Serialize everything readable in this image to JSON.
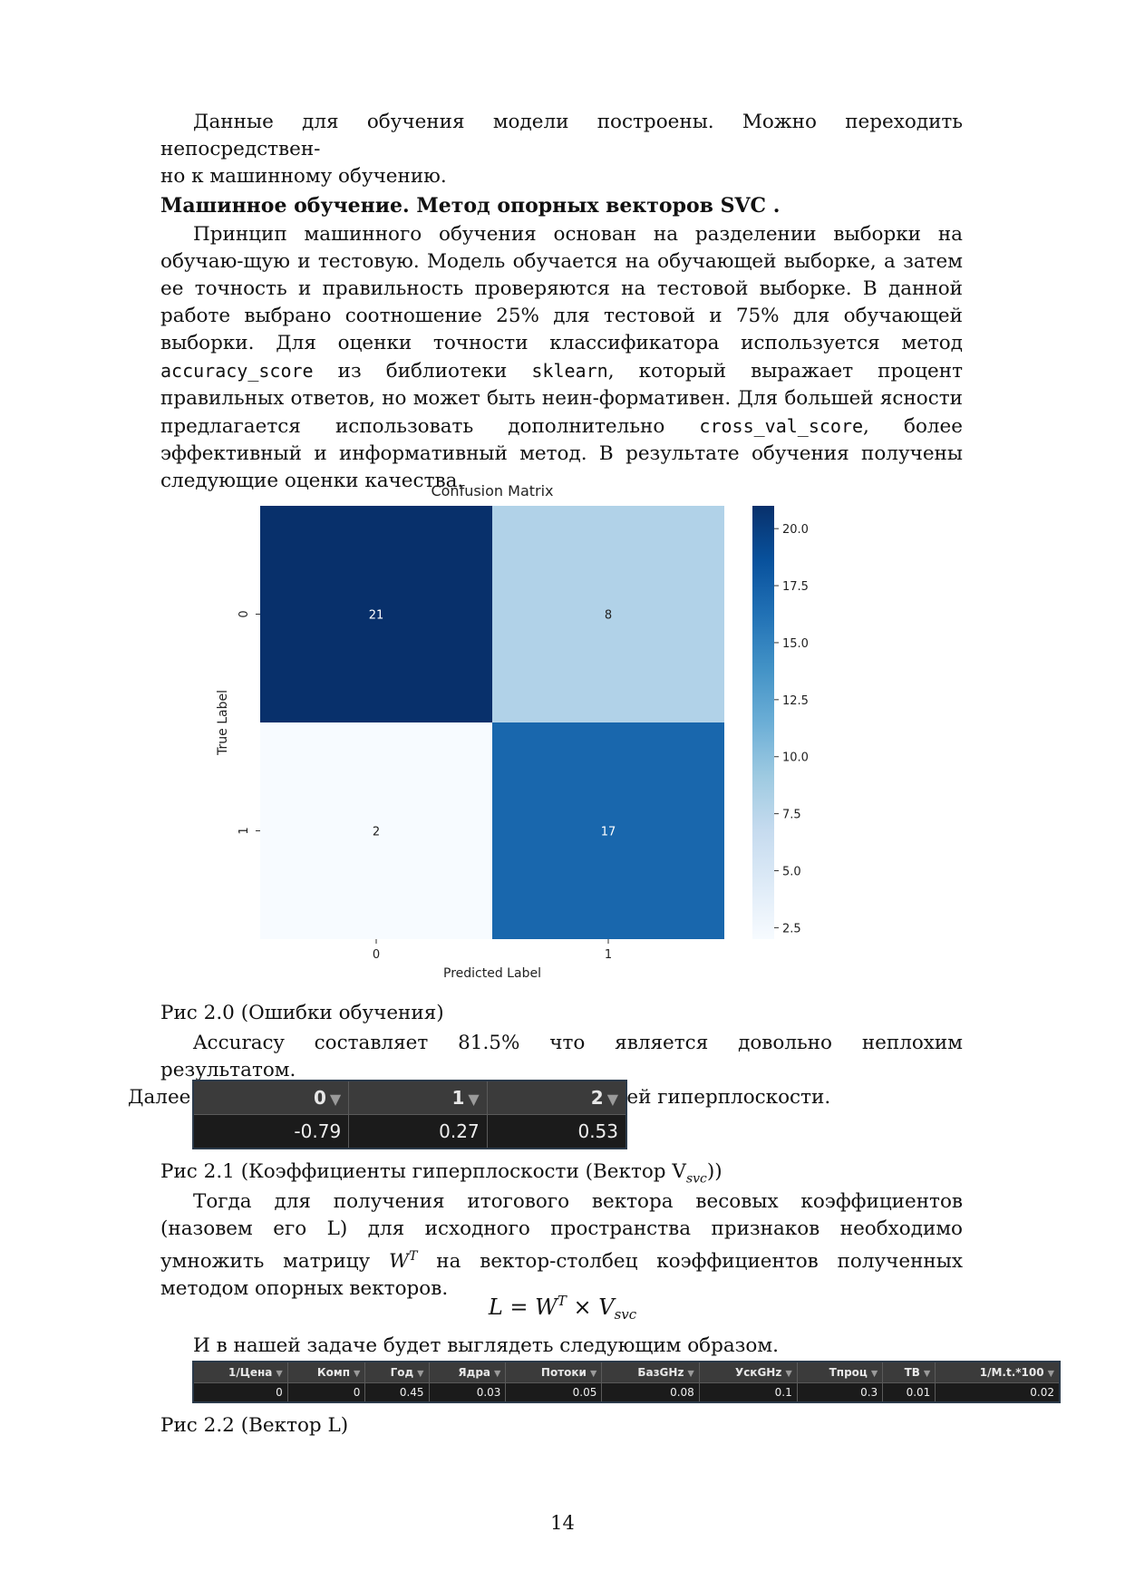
{
  "p1": {
    "line1": "Данные для обучения модели построены. Можно переходить непосредствен-",
    "line2": "но к машинному обучению."
  },
  "heading": "Машинное обучение. Метод опорных векторов SVC  .",
  "p2": {
    "t1": "Принцип машинного обучения основан на разделении выборки на обучаю-щую и тестовую. Модель обучается на обучающей выборке, а затем ее точность и правильность проверяются на тестовой выборке. В данной работе выбрано соотношение 25% для тестовой и 75% для обучающей выборки. Для оценки точности классификатора используется метод ",
    "code1": "accuracy_score",
    "t2": " из библиотеки ",
    "code2": "sklearn",
    "t3": ", который выражает процент правильных ответов, но может быть неин-формативен. Для большей ясности предлагается использовать дополнительно ",
    "code3": "cross_val_score",
    "t4": ", более эффективный и информативный метод. В результате обучения получены следующие оценки качества."
  },
  "chart_data": {
    "type": "heatmap",
    "title": "Confusion Matrix",
    "xlabel": "Predicted Label",
    "ylabel": "True Label",
    "x_categories": [
      "0",
      "1"
    ],
    "y_categories": [
      "0",
      "1"
    ],
    "matrix": [
      [
        21,
        8
      ],
      [
        2,
        17
      ]
    ],
    "colormap": "Blues",
    "colorbar_range": [
      2,
      21
    ],
    "colorbar_ticks": [
      "20.0",
      "17.5",
      "15.0",
      "12.5",
      "10.0",
      "7.5",
      "5.0",
      "2.5"
    ],
    "colorbar_tick_values": [
      20.0,
      17.5,
      15.0,
      12.5,
      10.0,
      7.5,
      5.0,
      2.5
    ]
  },
  "caption1": "Рис 2.0 (Ошибки обучения)",
  "p3": {
    "line1": "Accuracy составляет 81.5% что является довольно неплохим результатом.",
    "line2": "Далее посмотрим на коэффициенты разделяющей гиперплоскости."
  },
  "table1": {
    "headers": [
      "0",
      "1",
      "2"
    ],
    "values": [
      "-0.79",
      "0.27",
      "0.53"
    ]
  },
  "caption2": {
    "text": "Рис 2.1 (Коэффициенты гиперплоскости (Вектор V",
    "sub": "svc",
    "end": "))"
  },
  "p4": {
    "text": "Тогда для получения итогового вектора весовых коэффициентов (назовем его L) для исходного пространства признаков необходимо умножить матрицу ",
    "w": "W",
    "sup": "T",
    "end": " на вектор-столбец коэффициентов полученных методом опорных векторов."
  },
  "formula": {
    "lhs": "L = W",
    "sup": "T",
    "mid": " × V",
    "sub": "svc"
  },
  "p5": "И в нашей задаче будет выглядеть следующим образом.",
  "table2": {
    "headers": [
      "1/Цена",
      "Комп",
      "Год",
      "Ядра",
      "Потоки",
      "БазGHz",
      "УскGHz",
      "Тпроц",
      "ТВ",
      "1/M.t.*100"
    ],
    "values": [
      "0",
      "0",
      "0.45",
      "0.03",
      "0.05",
      "0.08",
      "0.1",
      "0.3",
      "0.01",
      "0.02"
    ]
  },
  "caption3": "Рис 2.2 (Вектор L)",
  "page_number": "14",
  "colors": {
    "table_bg": "#1e1e1e",
    "table_header": "#3b3b3b",
    "filter_icon": "▼"
  }
}
